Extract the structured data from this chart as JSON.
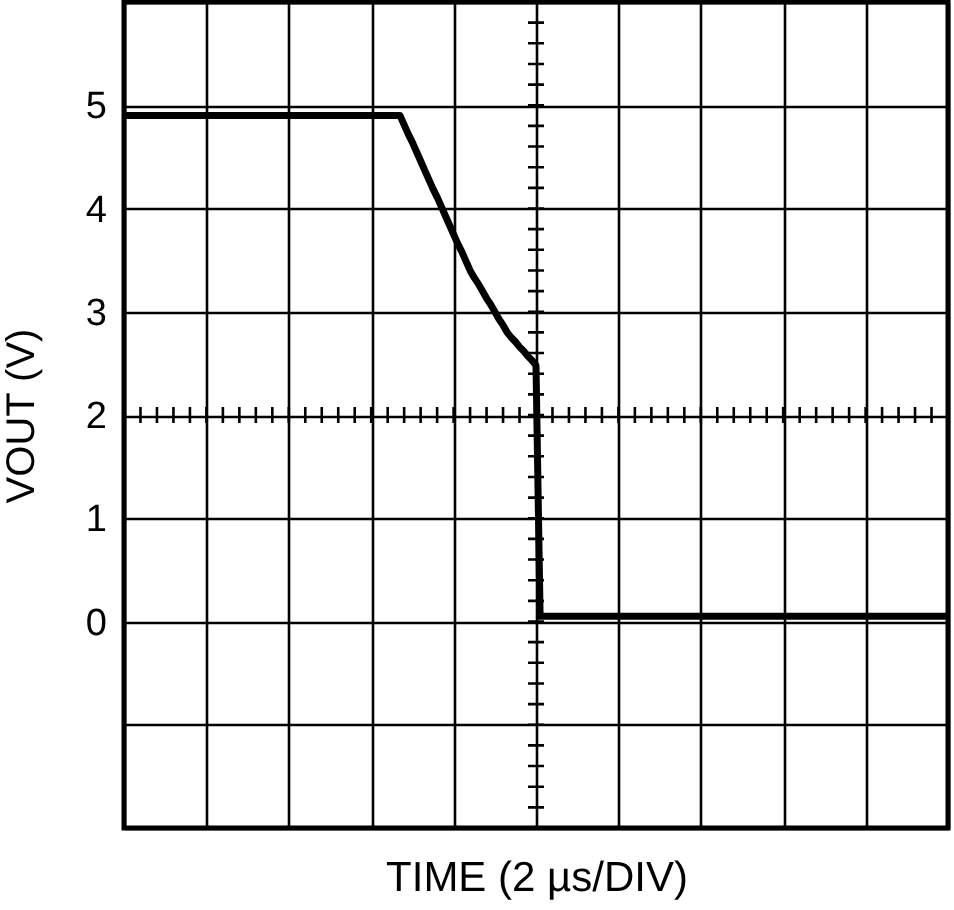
{
  "chart_data": {
    "type": "line",
    "xlabel": "TIME (2 µs/DIV)",
    "ylabel": "VOUT (V)",
    "categories": [
      null,
      null,
      null,
      null,
      null,
      null,
      null,
      null,
      null,
      null,
      null,
      null,
      null,
      null,
      null,
      null,
      null,
      null,
      null,
      null,
      null,
      null,
      null,
      null,
      null,
      null,
      null,
      null,
      null,
      null,
      null,
      null,
      null,
      null,
      null,
      null,
      null,
      null,
      null,
      null,
      null,
      null,
      null,
      null,
      null,
      null,
      null,
      null,
      null,
      null,
      null,
      null,
      null,
      null,
      null,
      null,
      null,
      null,
      null,
      null,
      null,
      null,
      null,
      null,
      null,
      null,
      null,
      null,
      null,
      null,
      null,
      null,
      null,
      null,
      null,
      null,
      null,
      null,
      null,
      null,
      null,
      null,
      null,
      null,
      null,
      null,
      null,
      null,
      null,
      null,
      null,
      null,
      null,
      null,
      null,
      null,
      null,
      null,
      null,
      null,
      null,
      null,
      null,
      null,
      null,
      null,
      null,
      null,
      null,
      null,
      null,
      null,
      null,
      null,
      null,
      null,
      null,
      null,
      null,
      null,
      null,
      null,
      null,
      null,
      null,
      null,
      null,
      null,
      null,
      null,
      null,
      null,
      null,
      null,
      null,
      null,
      null,
      null,
      null,
      null,
      null,
      null,
      null,
      null,
      null,
      null,
      null,
      null,
      null,
      null,
      null,
      null,
      null,
      null,
      null,
      null,
      null,
      null,
      null,
      null,
      null,
      null,
      null,
      null,
      null,
      null,
      null,
      null,
      null,
      null,
      null,
      null,
      null,
      null,
      null,
      null,
      null,
      null,
      null,
      null,
      null,
      null,
      null,
      null,
      null,
      null,
      null,
      null,
      null,
      null,
      null,
      null,
      null,
      null,
      null,
      null,
      null,
      null,
      null,
      null,
      null
    ],
    "series": [
      {
        "color": "#000000",
        "values": [
          4.9,
          4.9,
          4.9,
          4.9,
          4.9,
          4.9,
          4.9,
          4.9,
          4.9,
          4.9,
          4.9,
          4.9,
          4.9,
          4.9,
          4.9,
          4.9,
          4.9,
          4.9,
          4.9,
          4.9,
          4.9,
          4.9,
          4.9,
          4.9,
          4.9,
          4.9,
          4.9,
          4.9,
          4.9,
          4.9,
          4.9,
          4.9,
          4.9,
          4.9,
          4.9,
          4.9,
          4.9,
          4.9,
          4.9,
          4.9,
          4.9,
          4.9,
          4.9,
          4.9,
          4.9,
          4.9,
          4.9,
          4.9,
          4.9,
          4.9,
          4.9,
          4.9,
          4.9,
          4.9,
          4.9,
          4.9,
          4.9,
          4.9,
          4.9,
          4.9,
          4.9,
          4.9,
          4.9,
          4.9,
          4.9,
          4.9,
          4.9,
          4.9,
          4.81,
          4.72,
          4.64,
          4.55,
          4.46,
          4.37,
          4.28,
          4.19,
          4.11,
          4.02,
          3.93,
          3.84,
          3.75,
          3.66,
          3.58,
          3.49,
          3.4,
          3.33,
          3.27,
          3.2,
          3.13,
          3.07,
          3.0,
          2.93,
          2.87,
          2.8,
          2.75,
          2.71,
          2.66,
          2.62,
          2.57,
          2.53,
          2.48,
          0.05,
          0.05,
          0.05,
          0.05,
          0.05,
          0.05,
          0.05,
          0.05,
          0.05,
          0.05,
          0.05,
          0.05,
          0.05,
          0.05,
          0.05,
          0.05,
          0.05,
          0.05,
          0.05,
          0.05,
          0.05,
          0.05,
          0.05,
          0.05,
          0.05,
          0.05,
          0.05,
          0.05,
          0.05,
          0.05,
          0.05,
          0.05,
          0.05,
          0.05,
          0.05,
          0.05,
          0.05,
          0.05,
          0.05,
          0.05,
          0.05,
          0.05,
          0.05,
          0.05,
          0.05,
          0.05,
          0.05,
          0.05,
          0.05,
          0.05,
          0.05,
          0.05,
          0.05,
          0.05,
          0.05,
          0.05,
          0.05,
          0.05,
          0.05,
          0.05,
          0.05,
          0.05,
          0.05,
          0.05,
          0.05,
          0.05,
          0.05,
          0.05,
          0.05,
          0.05,
          0.05,
          0.05,
          0.05,
          0.05,
          0.05,
          0.05,
          0.05,
          0.05,
          0.05,
          0.05,
          0.05,
          0.05,
          0.05,
          0.05,
          0.05,
          0.05,
          0.05,
          0.05,
          0.05,
          0.05,
          0.05,
          0.05,
          0.05,
          0.05,
          0.05,
          0.05,
          0.05,
          0.05,
          0.05,
          0.05
        ]
      }
    ],
    "ylim": [
      -2,
      6
    ],
    "yticks": [
      {
        "value": -2,
        "label": null
      },
      {
        "value": -1,
        "label": null
      },
      0,
      1,
      2,
      3,
      4,
      5,
      {
        "value": 6,
        "label": null
      }
    ],
    "grid": true,
    "tick_labels": "y"
  }
}
